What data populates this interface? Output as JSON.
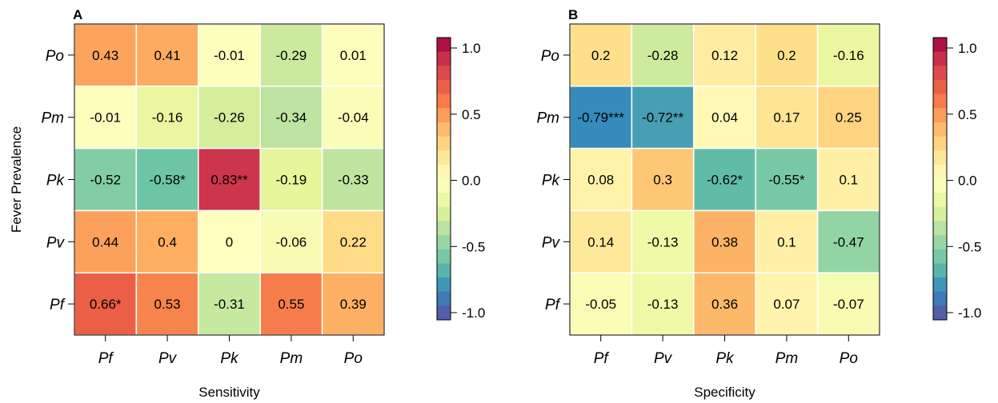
{
  "chart_data": [
    {
      "type": "heatmap",
      "panel_label": "A",
      "xlabel": "Sensitivity",
      "ylabel": "Fever Prevalence",
      "x_categories": [
        "Pf",
        "Pv",
        "Pk",
        "Pm",
        "Po"
      ],
      "y_categories": [
        "Po",
        "Pm",
        "Pk",
        "Pv",
        "Pf"
      ],
      "values": [
        [
          0.43,
          0.41,
          -0.01,
          -0.29,
          0.01
        ],
        [
          -0.01,
          -0.16,
          -0.26,
          -0.34,
          -0.04
        ],
        [
          -0.52,
          -0.58,
          0.83,
          -0.19,
          -0.33
        ],
        [
          0.44,
          0.4,
          0,
          -0.06,
          0.22
        ],
        [
          0.66,
          0.53,
          -0.31,
          0.55,
          0.39
        ]
      ],
      "labels": [
        [
          "0.43",
          "0.41",
          "-0.01",
          "-0.29",
          "0.01"
        ],
        [
          "-0.01",
          "-0.16",
          "-0.26",
          "-0.34",
          "-0.04"
        ],
        [
          "-0.52",
          "-0.58*",
          "0.83**",
          "-0.19",
          "-0.33"
        ],
        [
          "0.44",
          "0.4",
          "0",
          "-0.06",
          "0.22"
        ],
        [
          "0.66*",
          "0.53",
          "-0.31",
          "0.55",
          "0.39"
        ]
      ],
      "colorbar": {
        "range": [
          -1,
          1
        ],
        "ticks": [
          1,
          0.5,
          0,
          -0.5,
          -1
        ],
        "tick_labels": [
          "1.0",
          "0.5",
          "0.0",
          "-0.5",
          "-1.0"
        ]
      }
    },
    {
      "type": "heatmap",
      "panel_label": "B",
      "xlabel": "Specificity",
      "ylabel": "",
      "x_categories": [
        "Pf",
        "Pv",
        "Pk",
        "Pm",
        "Po"
      ],
      "y_categories": [
        "Po",
        "Pm",
        "Pk",
        "Pv",
        "Pf"
      ],
      "values": [
        [
          0.2,
          -0.28,
          0.12,
          0.2,
          -0.16
        ],
        [
          -0.79,
          -0.72,
          0.04,
          0.17,
          0.25
        ],
        [
          0.08,
          0.3,
          -0.62,
          -0.55,
          0.1
        ],
        [
          0.14,
          -0.13,
          0.38,
          0.1,
          -0.47
        ],
        [
          -0.05,
          -0.13,
          0.36,
          0.07,
          -0.07
        ]
      ],
      "labels": [
        [
          "0.2",
          "-0.28",
          "0.12",
          "0.2",
          "-0.16"
        ],
        [
          "-0.79***",
          "-0.72**",
          "0.04",
          "0.17",
          "0.25"
        ],
        [
          "0.08",
          "0.3",
          "-0.62*",
          "-0.55*",
          "0.1"
        ],
        [
          "0.14",
          "-0.13",
          "0.38",
          "0.1",
          "-0.47"
        ],
        [
          "-0.05",
          "-0.13",
          "0.36",
          "0.07",
          "-0.07"
        ]
      ],
      "colorbar": {
        "range": [
          -1,
          1
        ],
        "ticks": [
          1,
          0.5,
          0,
          -0.5,
          -1
        ],
        "tick_labels": [
          "1.0",
          "0.5",
          "0.0",
          "-0.5",
          "-1.0"
        ]
      }
    }
  ],
  "colors": {
    "scale": [
      "#5e4fa2",
      "#3288bd",
      "#66c2a5",
      "#abdda4",
      "#e6f598",
      "#ffffbf",
      "#fee08b",
      "#fdae61",
      "#f46d43",
      "#d53e4f",
      "#9e0142"
    ],
    "gridline": "#ffffff"
  }
}
